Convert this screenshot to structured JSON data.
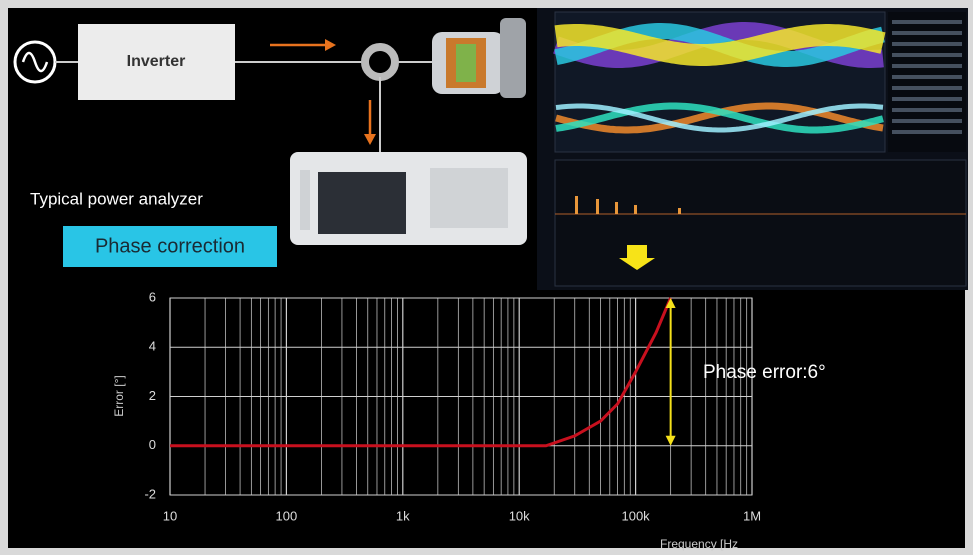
{
  "diagram": {
    "inverter": "Inverter",
    "caption": "Typical power analyzer",
    "button": "Phase correction"
  },
  "chart_data": {
    "type": "line",
    "x_label": "Frequency [Hz",
    "y_label": "Error [°]",
    "x": [
      10,
      17000,
      30000,
      50000,
      70000,
      100000,
      150000,
      200000
    ],
    "series": [
      {
        "name": "Phase error",
        "color": "#c8101e",
        "values": [
          0,
          0,
          0.4,
          1,
          1.7,
          3,
          4.6,
          6
        ]
      }
    ],
    "xlim": [
      10,
      1000000
    ],
    "log_x": true,
    "xticks": [
      10,
      100,
      {
        "value": 1000,
        "label": "1k"
      },
      {
        "value": 10000,
        "label": "10k"
      },
      {
        "value": 100000,
        "label": "100k"
      },
      {
        "value": 1000000,
        "label": "1M"
      }
    ],
    "ylim": [
      -2,
      6
    ],
    "yticks": [
      -2,
      0,
      2,
      4,
      6
    ],
    "grid": true,
    "annotation": {
      "text": "Phase error:6°",
      "x": 200000,
      "from": 0,
      "to": 6,
      "color": "#f5e11b"
    }
  }
}
